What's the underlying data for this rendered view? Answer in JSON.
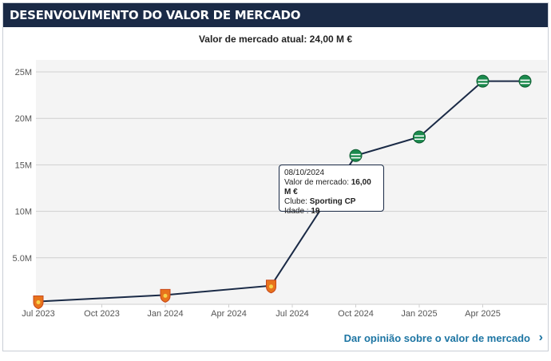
{
  "header": {
    "title": "DESENVOLVIMENTO DO VALOR DE MERCADO"
  },
  "current_value": "Valor de mercado atual: 24,00 M €",
  "tooltip": {
    "date": "08/10/2024",
    "value_label": "Valor de mercado: ",
    "value": "16,00 M €",
    "club_label": "Clube: ",
    "club": "Sporting CP",
    "age_label": "Idade : ",
    "age": "19"
  },
  "feedback_link": "Dar opinião sobre o valor de mercado",
  "chevron_icon": "chevron-right-icon",
  "colors": {
    "header_bg": "#1a2a46",
    "line": "#1a2a46",
    "link": "#1d75a3",
    "club_a": "#e8731c",
    "club_b": "#1b8a4d"
  },
  "chart_data": {
    "type": "line",
    "title": "",
    "xlabel": "",
    "ylabel": "",
    "x_ticks": [
      "Jul 2023",
      "Oct 2023",
      "Jan 2024",
      "Apr 2024",
      "Jul 2024",
      "Oct 2024",
      "Jan 2025",
      "Apr 2025"
    ],
    "y_ticks": [
      "5.0M",
      "10M",
      "15M",
      "20M",
      "25M"
    ],
    "ylim": [
      0,
      25
    ],
    "grid": true,
    "points": [
      {
        "date": "2023-07",
        "value": 0.3,
        "club": "club_a"
      },
      {
        "date": "2024-01",
        "value": 1.0,
        "club": "club_a"
      },
      {
        "date": "2024-06",
        "value": 2.0,
        "club": "club_a"
      },
      {
        "date": "2024-10",
        "value": 16.0,
        "club": "club_b"
      },
      {
        "date": "2025-01",
        "value": 18.0,
        "club": "club_b"
      },
      {
        "date": "2025-04",
        "value": 24.0,
        "club": "club_b"
      },
      {
        "date": "2025-06",
        "value": 24.0,
        "club": "club_b"
      }
    ]
  }
}
